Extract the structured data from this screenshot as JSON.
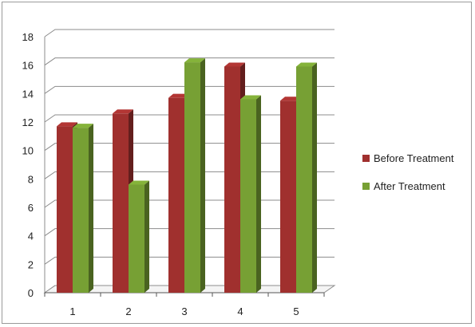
{
  "chart_data": {
    "type": "bar",
    "categories": [
      "1",
      "2",
      "3",
      "4",
      "5"
    ],
    "series": [
      {
        "name": "Before Treatment",
        "values": [
          11.7,
          12.6,
          13.7,
          15.9,
          13.5
        ],
        "color": "#a0302e"
      },
      {
        "name": "After Treatment",
        "values": [
          11.6,
          7.6,
          16.2,
          13.6,
          15.9
        ],
        "color": "#77a034"
      }
    ],
    "yticks": [
      "0",
      "2",
      "4",
      "6",
      "8",
      "10",
      "12",
      "14",
      "16",
      "18"
    ],
    "ylim": [
      0,
      18
    ],
    "grid": true,
    "style": "3d",
    "legend_position": "right"
  }
}
